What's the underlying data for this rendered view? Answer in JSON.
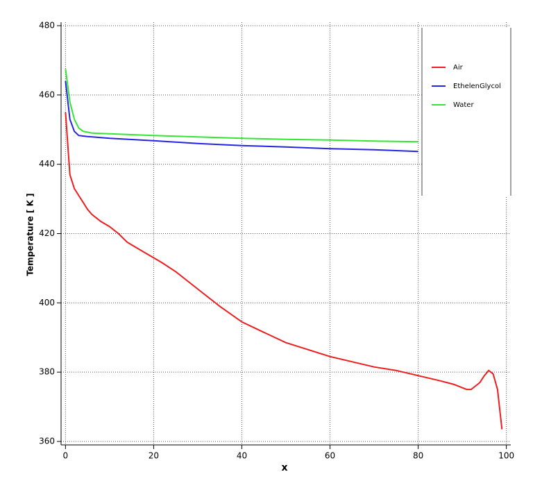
{
  "chart_data": {
    "type": "line",
    "x_label": "x",
    "y_label": "Temperature [ K ]",
    "xlim": [
      -1,
      101
    ],
    "ylim": [
      359,
      481
    ],
    "xticks": [
      0,
      20,
      40,
      60,
      80,
      100
    ],
    "yticks": [
      360,
      380,
      400,
      420,
      440,
      460,
      480
    ],
    "grid": true,
    "legend": "upper right",
    "series": [
      {
        "name": "Air",
        "color": "#ee1c1c",
        "x": [
          0,
          1,
          2,
          3,
          4,
          5,
          6,
          8,
          10,
          12,
          14,
          16,
          18,
          20,
          22,
          25,
          28,
          30,
          35,
          40,
          45,
          50,
          55,
          60,
          65,
          70,
          75,
          80,
          85,
          88,
          91,
          92,
          94,
          95,
          96,
          97,
          98,
          99
        ],
        "values": [
          455,
          437,
          433,
          431,
          429,
          427,
          425.5,
          423.5,
          422,
          420,
          417.5,
          416,
          414.5,
          413,
          411.5,
          409,
          406,
          404,
          399,
          394.5,
          391.5,
          388.5,
          386.5,
          384.5,
          383,
          381.5,
          380.5,
          379,
          377.5,
          376.5,
          375,
          375,
          377,
          379,
          380.5,
          379.5,
          375,
          363.5
        ]
      },
      {
        "name": "EthelenGlycol",
        "color": "#2323e6",
        "x": [
          0,
          1,
          2,
          3,
          5,
          10,
          20,
          30,
          40,
          50,
          60,
          70,
          80
        ],
        "values": [
          464,
          453,
          449.5,
          448.3,
          448,
          447.5,
          446.8,
          446,
          445.4,
          445,
          444.5,
          444.2,
          443.7
        ]
      },
      {
        "name": "Water",
        "color": "#33e633",
        "x": [
          0,
          1,
          2,
          3,
          4,
          6,
          10,
          20,
          30,
          40,
          50,
          60,
          70,
          80
        ],
        "values": [
          467.5,
          458,
          453,
          450.5,
          449.5,
          449,
          448.8,
          448.3,
          447.9,
          447.5,
          447.2,
          447,
          446.7,
          446.5
        ]
      }
    ]
  }
}
